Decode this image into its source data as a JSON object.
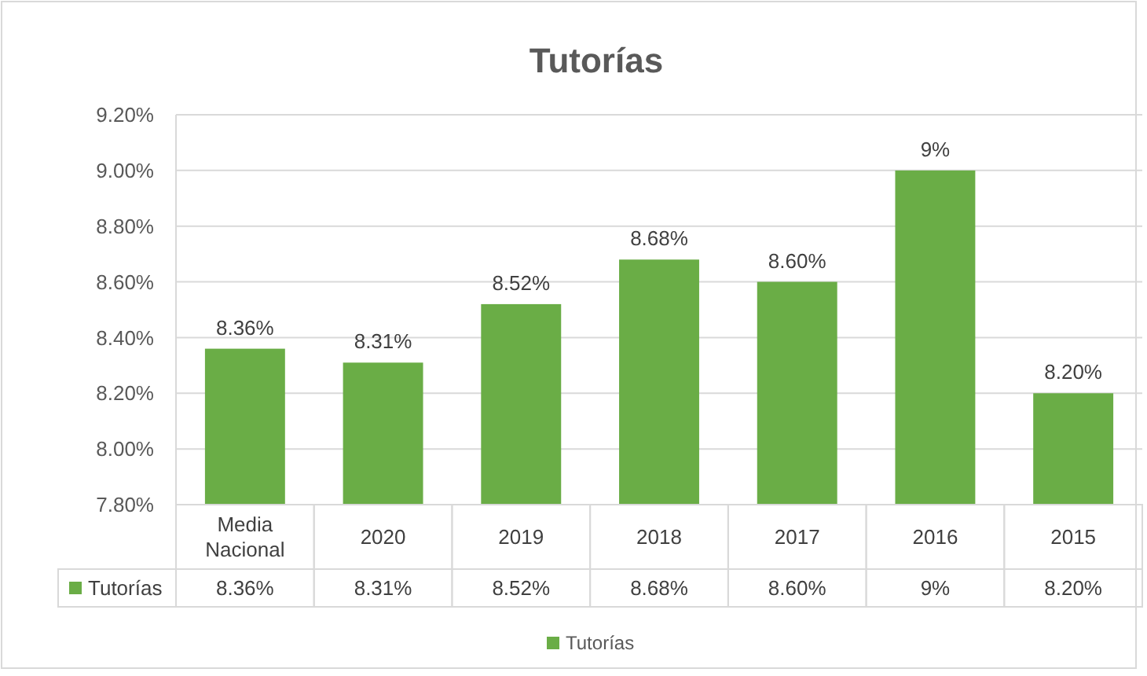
{
  "chart_data": {
    "type": "bar",
    "title": "Tutorías",
    "categories": [
      "Media Nacional",
      "2020",
      "2019",
      "2018",
      "2017",
      "2016",
      "2015"
    ],
    "series": [
      {
        "name": "Tutorías",
        "color": "#6aad46",
        "values": [
          8.36,
          8.31,
          8.52,
          8.68,
          8.6,
          9,
          8.2
        ],
        "value_labels": [
          "8.36%",
          "8.31%",
          "8.52%",
          "8.68%",
          "8.60%",
          "9%",
          "8.20%"
        ]
      }
    ],
    "ylim": [
      7.8,
      9.2
    ],
    "yticks": [
      {
        "value": 7.8,
        "label": "7.80%"
      },
      {
        "value": 8.0,
        "label": "8.00%"
      },
      {
        "value": 8.2,
        "label": "8.20%"
      },
      {
        "value": 8.4,
        "label": "8.40%"
      },
      {
        "value": 8.6,
        "label": "8.60%"
      },
      {
        "value": 8.8,
        "label": "8.80%"
      },
      {
        "value": 9.0,
        "label": "9.00%"
      },
      {
        "value": 9.2,
        "label": "9.20%"
      }
    ],
    "grid": "y",
    "legend": "bottom"
  }
}
